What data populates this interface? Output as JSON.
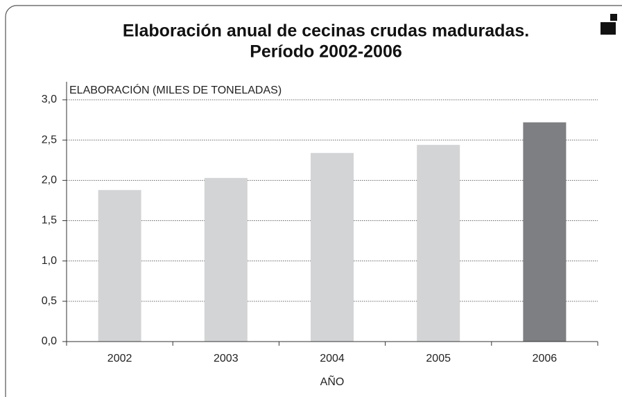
{
  "chart_data": {
    "type": "bar",
    "title": [
      "Elaboración anual de cecinas crudas maduradas.",
      "Período 2002-2006"
    ],
    "y_label": "ELABORACIÓN (MILES DE TONELADAS)",
    "x_label": "AÑO",
    "categories": [
      "2002",
      "2003",
      "2004",
      "2005",
      "2006"
    ],
    "values": [
      1.88,
      2.03,
      2.34,
      2.44,
      2.72
    ],
    "colors": [
      "#d3d4d5",
      "#d3d4d5",
      "#d3d4d5",
      "#d3d4d5",
      "#7e7f83"
    ],
    "ylim": [
      0,
      3
    ],
    "yticks": [
      {
        "value": 0,
        "label": "0,0"
      },
      {
        "value": 0.5,
        "label": "0,5"
      },
      {
        "value": 1,
        "label": "1,0"
      },
      {
        "value": 1.5,
        "label": "1,5"
      },
      {
        "value": 2,
        "label": "2,0"
      },
      {
        "value": 2.5,
        "label": "2,5"
      },
      {
        "value": 3,
        "label": "3,0"
      }
    ],
    "grid": true
  }
}
